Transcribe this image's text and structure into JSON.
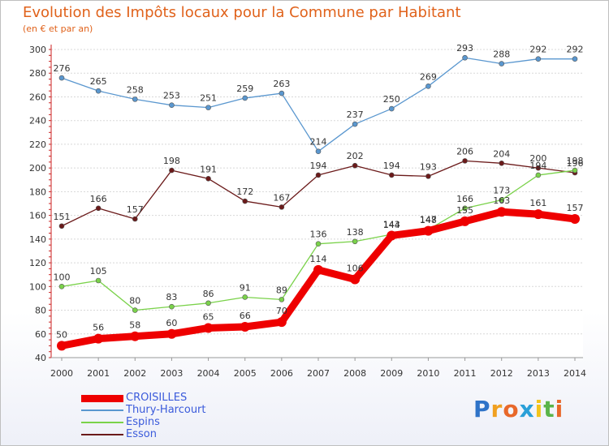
{
  "title": "Evolution des Impôts locaux pour la Commune par Habitant",
  "subtitle": "(en € et par an)",
  "logo": {
    "letters": [
      "P",
      "r",
      "o",
      "x",
      "i",
      "t",
      "i"
    ],
    "colors": [
      "#2f73c8",
      "#f0a020",
      "#e8682a",
      "#2aa0d8",
      "#f3c41c",
      "#5bb44a",
      "#e8682a"
    ]
  },
  "chart_data": {
    "type": "line",
    "title": "Evolution des Impôts locaux pour la Commune par Habitant",
    "subtitle": "(en € et par an)",
    "x": [
      "2000",
      "2001",
      "2002",
      "2003",
      "2004",
      "2005",
      "2006",
      "2007",
      "2008",
      "2009",
      "2010",
      "2011",
      "2012",
      "2013",
      "2014"
    ],
    "ylim": [
      40,
      300
    ],
    "yticks": [
      40,
      60,
      80,
      100,
      120,
      140,
      160,
      180,
      200,
      220,
      240,
      260,
      280,
      300
    ],
    "grid": "horizontal",
    "legend_position": "bottom-left",
    "series": [
      {
        "name": "CROISILLES",
        "color": "#ee0000",
        "values": [
          50,
          56,
          58,
          60,
          65,
          66,
          70,
          114,
          106,
          143,
          147,
          155,
          163,
          161,
          157
        ]
      },
      {
        "name": "Thury-Harcourt",
        "color": "#5a97cf",
        "values": [
          276,
          265,
          258,
          253,
          251,
          259,
          263,
          214,
          237,
          250,
          269,
          293,
          288,
          292,
          292
        ]
      },
      {
        "name": "Espins",
        "color": "#7ad24a",
        "values": [
          100,
          105,
          80,
          83,
          86,
          91,
          89,
          136,
          138,
          144,
          148,
          166,
          173,
          194,
          198
        ]
      },
      {
        "name": "Esson",
        "color": "#6b1a1a",
        "values": [
          151,
          166,
          157,
          198,
          191,
          172,
          167,
          194,
          202,
          194,
          193,
          206,
          204,
          200,
          196
        ]
      }
    ]
  }
}
